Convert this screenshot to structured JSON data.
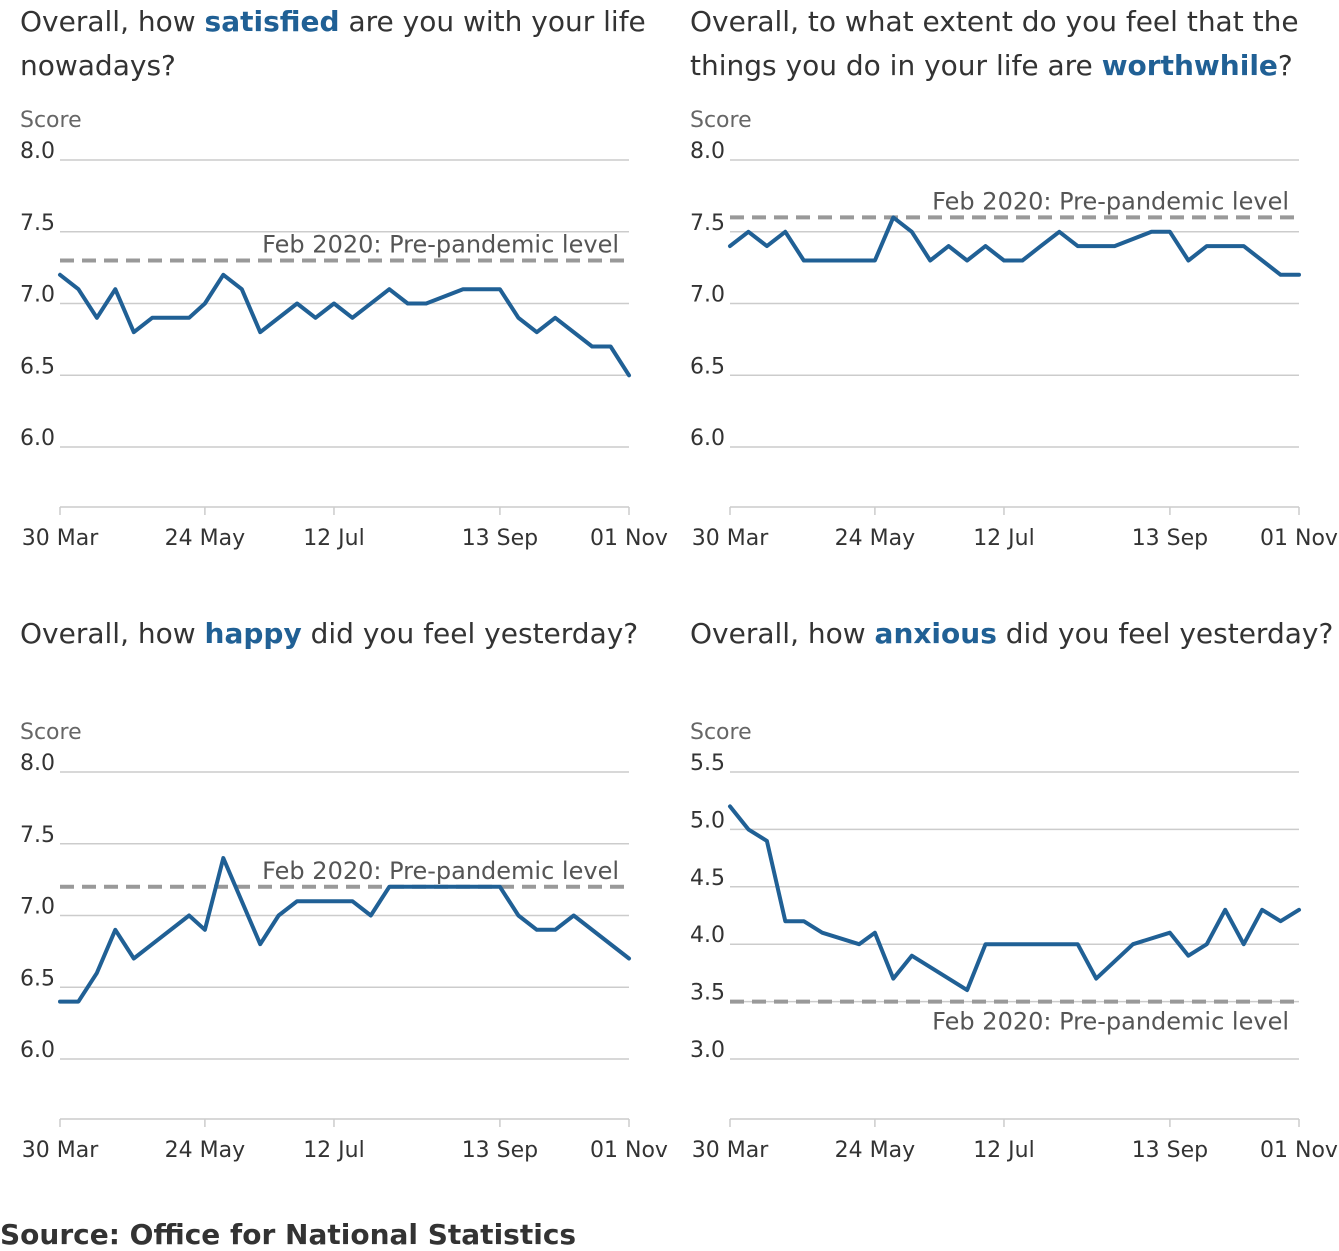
{
  "source": "Source: Office for National Statistics",
  "colors": {
    "line": "#206095",
    "reference": "#999999",
    "grid": "#cccccc",
    "highlight": "#206095"
  },
  "chart_data": [
    {
      "type": "line",
      "title": {
        "before": "Overall, how ",
        "highlight": "satisfied",
        "after": " are you with your life nowadays?"
      },
      "ylabel": "Score",
      "ylim": [
        6.0,
        8.0
      ],
      "yticks": [
        "6.0",
        "6.5",
        "7.0",
        "7.5",
        "8.0"
      ],
      "xticks": [
        "30 Mar",
        "24 May",
        "12 Jul",
        "13 Sep",
        "01 Nov"
      ],
      "x": [
        "2020-03-30",
        "2020-04-06",
        "2020-04-13",
        "2020-04-20",
        "2020-04-27",
        "2020-05-04",
        "2020-05-11",
        "2020-05-18",
        "2020-05-24",
        "2020-05-31",
        "2020-06-07",
        "2020-06-14",
        "2020-06-28",
        "2020-07-05",
        "2020-07-12",
        "2020-07-19",
        "2020-08-02",
        "2020-08-09",
        "2020-08-16",
        "2020-08-30",
        "2020-09-13",
        "2020-09-20",
        "2020-09-27",
        "2020-10-04",
        "2020-10-18",
        "2020-10-25",
        "2020-11-01"
      ],
      "values": [
        7.2,
        7.1,
        6.9,
        7.1,
        6.8,
        6.9,
        6.9,
        6.9,
        7.0,
        7.2,
        7.1,
        6.8,
        7.0,
        6.9,
        7.0,
        6.9,
        7.1,
        7.0,
        7.0,
        7.1,
        7.1,
        6.9,
        6.8,
        6.9,
        6.7,
        6.7,
        6.5
      ],
      "reference": {
        "value": 7.3,
        "label": "Feb 2020: Pre-pandemic level",
        "label_position": "above"
      }
    },
    {
      "type": "line",
      "title": {
        "before": "Overall, to what extent do you feel that the things you do in your life are ",
        "highlight": "worthwhile",
        "after": "?"
      },
      "ylabel": "Score",
      "ylim": [
        6.0,
        8.0
      ],
      "yticks": [
        "6.0",
        "6.5",
        "7.0",
        "7.5",
        "8.0"
      ],
      "xticks": [
        "30 Mar",
        "24 May",
        "12 Jul",
        "13 Sep",
        "01 Nov"
      ],
      "x": [
        "2020-03-30",
        "2020-04-06",
        "2020-04-13",
        "2020-04-20",
        "2020-04-27",
        "2020-05-24",
        "2020-05-31",
        "2020-06-07",
        "2020-06-14",
        "2020-06-21",
        "2020-06-28",
        "2020-07-05",
        "2020-07-12",
        "2020-07-19",
        "2020-07-26",
        "2020-08-02",
        "2020-08-09",
        "2020-08-23",
        "2020-09-06",
        "2020-09-13",
        "2020-09-20",
        "2020-09-27",
        "2020-10-11",
        "2020-10-25",
        "2020-11-01"
      ],
      "values": [
        7.4,
        7.5,
        7.4,
        7.5,
        7.3,
        7.3,
        7.6,
        7.5,
        7.3,
        7.4,
        7.3,
        7.4,
        7.3,
        7.3,
        7.4,
        7.5,
        7.4,
        7.4,
        7.5,
        7.5,
        7.3,
        7.4,
        7.4,
        7.2,
        7.2
      ],
      "reference": {
        "value": 7.6,
        "label": "Feb 2020: Pre-pandemic level",
        "label_position": "above"
      }
    },
    {
      "type": "line",
      "title": {
        "before": "Overall, how ",
        "highlight": "happy",
        "after": " did you feel yesterday?"
      },
      "ylabel": "Score",
      "ylim": [
        6.0,
        8.0
      ],
      "yticks": [
        "6.0",
        "6.5",
        "7.0",
        "7.5",
        "8.0"
      ],
      "xticks": [
        "30 Mar",
        "24 May",
        "12 Jul",
        "13 Sep",
        "01 Nov"
      ],
      "x": [
        "2020-03-30",
        "2020-04-06",
        "2020-04-13",
        "2020-04-20",
        "2020-04-27",
        "2020-05-04",
        "2020-05-18",
        "2020-05-24",
        "2020-05-31",
        "2020-06-14",
        "2020-06-21",
        "2020-06-28",
        "2020-07-12",
        "2020-07-19",
        "2020-07-26",
        "2020-08-02",
        "2020-08-09",
        "2020-09-13",
        "2020-09-20",
        "2020-09-27",
        "2020-10-04",
        "2020-10-11",
        "2020-11-01"
      ],
      "values": [
        6.4,
        6.4,
        6.6,
        6.9,
        6.7,
        6.8,
        7.0,
        6.9,
        7.4,
        6.8,
        7.0,
        7.1,
        7.1,
        7.1,
        7.0,
        7.2,
        7.2,
        7.2,
        7.0,
        6.9,
        6.9,
        7.0,
        6.7
      ],
      "reference": {
        "value": 7.2,
        "label": "Feb 2020: Pre-pandemic level",
        "label_position": "above"
      }
    },
    {
      "type": "line",
      "title": {
        "before": "Overall, how ",
        "highlight": "anxious",
        "after": " did you feel yesterday?"
      },
      "ylabel": "Score",
      "ylim": [
        3.0,
        5.5
      ],
      "yticks": [
        "3.0",
        "3.5",
        "4.0",
        "4.5",
        "5.0",
        "5.5"
      ],
      "xticks": [
        "30 Mar",
        "24 May",
        "12 Jul",
        "13 Sep",
        "01 Nov"
      ],
      "x": [
        "2020-03-30",
        "2020-04-06",
        "2020-04-13",
        "2020-04-20",
        "2020-04-27",
        "2020-05-04",
        "2020-05-18",
        "2020-05-24",
        "2020-05-31",
        "2020-06-07",
        "2020-06-28",
        "2020-07-05",
        "2020-07-12",
        "2020-08-09",
        "2020-08-16",
        "2020-08-30",
        "2020-09-13",
        "2020-09-20",
        "2020-09-27",
        "2020-10-04",
        "2020-10-11",
        "2020-10-18",
        "2020-10-25",
        "2020-11-01"
      ],
      "values": [
        5.2,
        5.0,
        4.9,
        4.2,
        4.2,
        4.1,
        4.0,
        4.1,
        3.7,
        3.9,
        3.6,
        4.0,
        4.0,
        4.0,
        3.7,
        4.0,
        4.1,
        3.9,
        4.0,
        4.3,
        4.0,
        4.3,
        4.2,
        4.3
      ],
      "reference": {
        "value": 3.5,
        "label": "Feb 2020: Pre-pandemic level",
        "label_position": "below"
      }
    }
  ]
}
